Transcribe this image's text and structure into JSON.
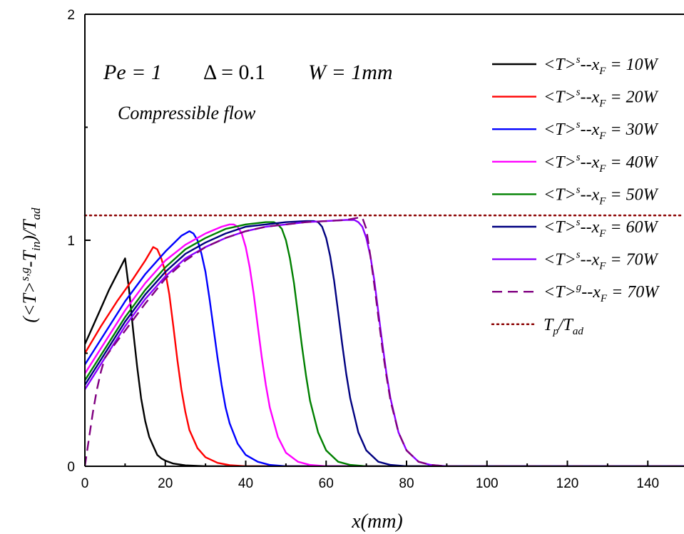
{
  "chart_data": {
    "type": "line",
    "xlabel": "x(mm)",
    "ylabel": "(<T>^{s,g}-T_in)/T_ad",
    "xlim": [
      0,
      149
    ],
    "ylim": [
      0,
      2
    ],
    "x_ticks": [
      "0",
      "20",
      "40",
      "60",
      "80",
      "100",
      "120",
      "140"
    ],
    "y_ticks": [
      "0",
      "1",
      "2"
    ],
    "grid": false,
    "legend_position": "top-right",
    "annotations": {
      "params": [
        "Pe = 1",
        "Δ = 0.1",
        "W = 1mm"
      ],
      "flow": "Compressible flow"
    },
    "reference_line": {
      "name": "T_p/T_ad",
      "y": 1.11,
      "color": "#8b0000",
      "style": "dotted"
    },
    "series": [
      {
        "name": "<T>^s--x_F = 10W",
        "color": "#000000",
        "style": "solid",
        "x": [
          0,
          2,
          4,
          6,
          8,
          10,
          11,
          12,
          13,
          14,
          15,
          16,
          17,
          18,
          19,
          20,
          22,
          25,
          30,
          149
        ],
        "y": [
          0.54,
          0.62,
          0.7,
          0.78,
          0.85,
          0.92,
          0.78,
          0.6,
          0.44,
          0.3,
          0.2,
          0.13,
          0.09,
          0.05,
          0.035,
          0.025,
          0.012,
          0.004,
          0.0,
          0.0
        ]
      },
      {
        "name": "<T>^s--x_F = 20W",
        "color": "#ff0000",
        "style": "solid",
        "x": [
          0,
          4,
          8,
          12,
          15,
          17,
          18,
          19,
          20,
          21,
          22,
          23,
          24,
          25,
          26,
          28,
          30,
          33,
          36,
          40,
          149
        ],
        "y": [
          0.5,
          0.62,
          0.73,
          0.83,
          0.91,
          0.97,
          0.96,
          0.92,
          0.86,
          0.76,
          0.62,
          0.47,
          0.34,
          0.24,
          0.16,
          0.08,
          0.04,
          0.015,
          0.005,
          0.0,
          0.0
        ]
      },
      {
        "name": "<T>^s--x_F = 30W",
        "color": "#0000ff",
        "style": "solid",
        "x": [
          0,
          5,
          10,
          15,
          20,
          24,
          26,
          27,
          28,
          29,
          30,
          31,
          32,
          33,
          34,
          35,
          36,
          38,
          40,
          43,
          46,
          50,
          149
        ],
        "y": [
          0.45,
          0.59,
          0.73,
          0.85,
          0.95,
          1.02,
          1.04,
          1.03,
          1.0,
          0.94,
          0.86,
          0.74,
          0.61,
          0.48,
          0.36,
          0.26,
          0.19,
          0.1,
          0.05,
          0.02,
          0.006,
          0.0,
          0.0
        ]
      },
      {
        "name": "<T>^s--x_F = 40W",
        "color": "#ff00ff",
        "style": "solid",
        "x": [
          0,
          5,
          10,
          15,
          20,
          25,
          30,
          34,
          36,
          37,
          38,
          39,
          40,
          41,
          42,
          43,
          44,
          45,
          46,
          48,
          50,
          53,
          56,
          60,
          149
        ],
        "y": [
          0.41,
          0.55,
          0.69,
          0.81,
          0.91,
          0.98,
          1.03,
          1.06,
          1.07,
          1.07,
          1.06,
          1.03,
          0.97,
          0.88,
          0.76,
          0.62,
          0.48,
          0.36,
          0.26,
          0.13,
          0.06,
          0.02,
          0.006,
          0.0,
          0.0
        ]
      },
      {
        "name": "<T>^s--x_F = 50W",
        "color": "#008000",
        "style": "solid",
        "x": [
          0,
          5,
          10,
          15,
          20,
          25,
          30,
          35,
          40,
          45,
          47,
          48,
          49,
          50,
          51,
          52,
          53,
          54,
          55,
          56,
          58,
          60,
          63,
          66,
          70,
          149
        ],
        "y": [
          0.38,
          0.52,
          0.66,
          0.78,
          0.88,
          0.96,
          1.01,
          1.05,
          1.07,
          1.08,
          1.08,
          1.07,
          1.05,
          1.0,
          0.92,
          0.81,
          0.67,
          0.53,
          0.4,
          0.29,
          0.15,
          0.07,
          0.02,
          0.006,
          0.0,
          0.0
        ]
      },
      {
        "name": "<T>^s--x_F = 60W",
        "color": "#000080",
        "style": "solid",
        "x": [
          0,
          5,
          10,
          15,
          20,
          25,
          30,
          35,
          40,
          45,
          50,
          55,
          57,
          58,
          59,
          60,
          61,
          62,
          63,
          64,
          65,
          66,
          68,
          70,
          73,
          76,
          80,
          149
        ],
        "y": [
          0.36,
          0.5,
          0.64,
          0.76,
          0.86,
          0.94,
          0.99,
          1.03,
          1.06,
          1.07,
          1.08,
          1.085,
          1.085,
          1.08,
          1.06,
          1.01,
          0.93,
          0.82,
          0.68,
          0.54,
          0.41,
          0.3,
          0.15,
          0.07,
          0.02,
          0.006,
          0.0,
          0.0
        ]
      },
      {
        "name": "<T>^s--x_F = 70W",
        "color": "#8b00ff",
        "style": "solid",
        "x": [
          0,
          5,
          10,
          15,
          20,
          25,
          30,
          35,
          40,
          45,
          50,
          55,
          60,
          65,
          67,
          68,
          69,
          70,
          71,
          72,
          73,
          74,
          75,
          76,
          78,
          80,
          83,
          86,
          90,
          149
        ],
        "y": [
          0.34,
          0.48,
          0.62,
          0.74,
          0.84,
          0.92,
          0.97,
          1.01,
          1.04,
          1.06,
          1.07,
          1.08,
          1.085,
          1.09,
          1.09,
          1.08,
          1.06,
          1.01,
          0.93,
          0.82,
          0.68,
          0.54,
          0.41,
          0.3,
          0.15,
          0.07,
          0.02,
          0.006,
          0.0,
          0.0
        ]
      },
      {
        "name": "<T>^g--x_F = 70W",
        "color": "#800080",
        "style": "dashed",
        "x": [
          0,
          1,
          2,
          3,
          4,
          5,
          7,
          10,
          15,
          20,
          25,
          30,
          35,
          40,
          45,
          50,
          55,
          60,
          65,
          68,
          69,
          70,
          71,
          72,
          73,
          74,
          75,
          76,
          78,
          80,
          83,
          86,
          90,
          149
        ],
        "y": [
          0.0,
          0.12,
          0.24,
          0.34,
          0.42,
          0.48,
          0.53,
          0.6,
          0.72,
          0.83,
          0.91,
          0.97,
          1.01,
          1.04,
          1.06,
          1.07,
          1.08,
          1.085,
          1.09,
          1.1,
          1.1,
          1.05,
          0.93,
          0.8,
          0.66,
          0.52,
          0.4,
          0.29,
          0.15,
          0.07,
          0.02,
          0.006,
          0.0,
          0.0
        ]
      }
    ]
  }
}
